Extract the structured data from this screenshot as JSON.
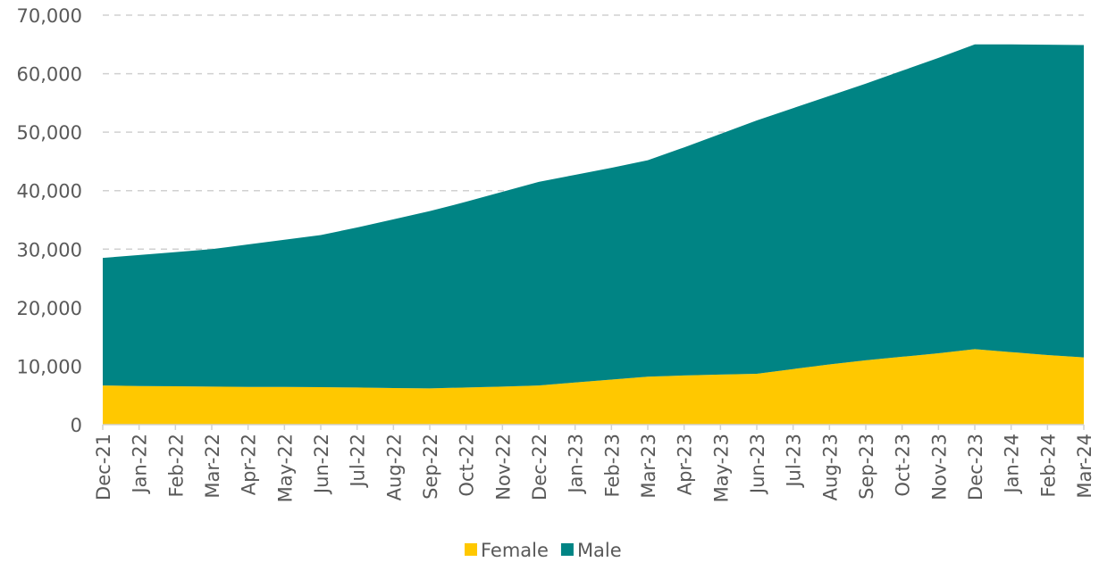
{
  "chart_data": {
    "type": "stacked_area",
    "categories": [
      "Dec-21",
      "Jan-22",
      "Feb-22",
      "Mar-22",
      "Apr-22",
      "May-22",
      "Jun-22",
      "Jul-22",
      "Aug-22",
      "Sep-22",
      "Oct-22",
      "Nov-22",
      "Dec-22",
      "Jan-23",
      "Feb-23",
      "Mar-23",
      "Apr-23",
      "May-23",
      "Jun-23",
      "Jul-23",
      "Aug-23",
      "Sep-23",
      "Oct-23",
      "Nov-23",
      "Dec-23",
      "Jan-24",
      "Feb-24",
      "Mar-24"
    ],
    "series": [
      {
        "name": "Female",
        "color": "#ffc800",
        "values": [
          6700,
          6600,
          6550,
          6500,
          6450,
          6450,
          6400,
          6350,
          6250,
          6200,
          6350,
          6500,
          6700,
          7200,
          7700,
          8200,
          8400,
          8550,
          8700,
          9500,
          10300,
          11000,
          11600,
          12200,
          12900,
          12400,
          11900,
          11500
        ]
      },
      {
        "name": "Male",
        "color": "#008484",
        "values": [
          21800,
          22400,
          22950,
          23500,
          24350,
          25150,
          26000,
          27350,
          28850,
          30300,
          31750,
          33300,
          34800,
          35500,
          36200,
          37000,
          39000,
          41150,
          43300,
          44600,
          45900,
          47300,
          48900,
          50500,
          52100,
          52600,
          53050,
          53400
        ]
      }
    ],
    "ylim": [
      0,
      70000
    ],
    "yticks": [
      0,
      {
        "value": 10000,
        "label": "10,000"
      },
      {
        "value": 20000,
        "label": "20,000"
      },
      {
        "value": 30000,
        "label": "30,000"
      },
      {
        "value": 40000,
        "label": "40,000"
      },
      {
        "value": 50000,
        "label": "50,000"
      },
      {
        "value": 60000,
        "label": "60,000"
      },
      {
        "value": 70000,
        "label": "70,000"
      }
    ],
    "grid": true,
    "legend": "bottom"
  }
}
